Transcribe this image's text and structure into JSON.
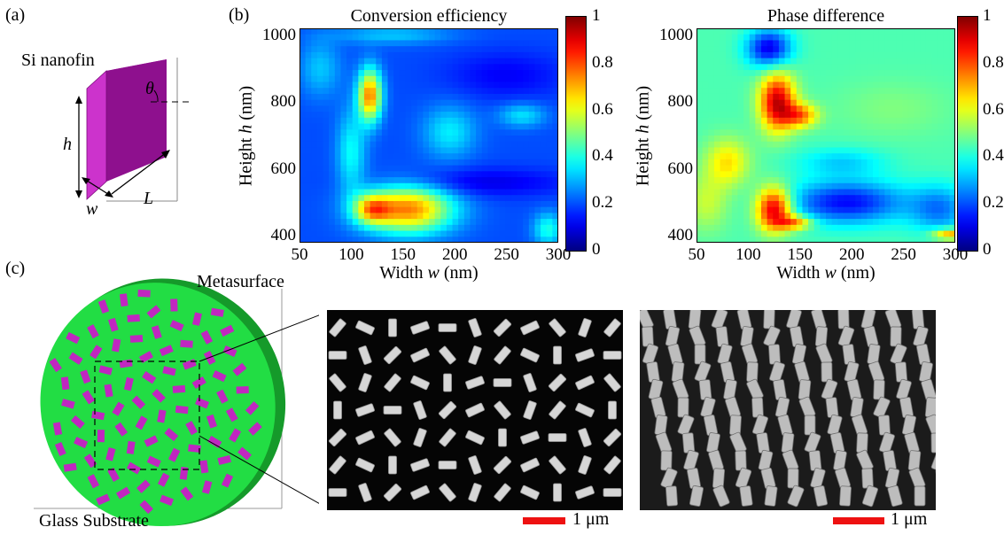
{
  "panels": {
    "a": {
      "label": "(a)",
      "title": "Si nanofin",
      "symbols": {
        "theta": "θ",
        "h": "h",
        "w": "w",
        "L": "L"
      },
      "colors": {
        "fin_front": "#cc33cc",
        "fin_side": "#8e108e",
        "fin_top": "#b425b4"
      }
    },
    "b": {
      "label": "(b)"
    },
    "c": {
      "label": "(c)",
      "metasurface_label": "Metasurface",
      "substrate_label": "Glass Substrate",
      "scale_bar_left": "1 μm",
      "scale_bar_right": "1 μm",
      "colors": {
        "substrate": "#22dd44",
        "substrate_edge": "#159a2a",
        "fins": "#c027c0",
        "scale_bar": "#ee1111",
        "sem_bg": "#050505"
      }
    }
  },
  "chart_data": [
    {
      "type": "heatmap",
      "title": "Conversion efficiency",
      "xlabel_prefix": "Width ",
      "xlabel_var": "w",
      "xlabel_unit": " (nm)",
      "ylabel_prefix": "Height ",
      "ylabel_var": "h",
      "ylabel_unit": " (nm)",
      "xlim": [
        50,
        300
      ],
      "ylim": [
        380,
        1020
      ],
      "xticks": [
        "50",
        "100",
        "150",
        "200",
        "250",
        "300"
      ],
      "yticks": [
        "400",
        "600",
        "800",
        "1000"
      ],
      "colorbar_ticks": [
        "0",
        "0.2",
        "0.4",
        "0.6",
        "0.8",
        "1"
      ],
      "colormap": "jet",
      "background": 0.2,
      "hotspots": [
        {
          "x": 155,
          "y": 480,
          "sx": 30,
          "sy": 50,
          "v": 0.55
        },
        {
          "x": 120,
          "y": 480,
          "sx": 12,
          "sy": 30,
          "v": 0.35
        },
        {
          "x": 118,
          "y": 820,
          "sx": 8,
          "sy": 55,
          "v": 0.55
        },
        {
          "x": 100,
          "y": 650,
          "sx": 10,
          "sy": 90,
          "v": 0.18
        },
        {
          "x": 70,
          "y": 900,
          "sx": 14,
          "sy": 60,
          "v": 0.12
        },
        {
          "x": 140,
          "y": 1000,
          "sx": 40,
          "sy": 20,
          "v": 0.12
        },
        {
          "x": 195,
          "y": 710,
          "sx": 18,
          "sy": 55,
          "v": 0.16
        },
        {
          "x": 265,
          "y": 760,
          "sx": 16,
          "sy": 25,
          "v": 0.15
        },
        {
          "x": 290,
          "y": 420,
          "sx": 10,
          "sy": 35,
          "v": 0.2
        },
        {
          "x": 225,
          "y": 560,
          "sx": 60,
          "sy": 30,
          "v": -0.1
        },
        {
          "x": 250,
          "y": 880,
          "sx": 40,
          "sy": 50,
          "v": -0.08
        }
      ]
    },
    {
      "type": "heatmap",
      "title": "Phase difference",
      "xlabel_prefix": "Width ",
      "xlabel_var": "w",
      "xlabel_unit": " (nm)",
      "ylabel_prefix": "Height ",
      "ylabel_var": "h",
      "ylabel_unit": " (nm)",
      "xlim": [
        50,
        300
      ],
      "ylim": [
        380,
        1020
      ],
      "xticks": [
        "50",
        "100",
        "150",
        "200",
        "250",
        "300"
      ],
      "yticks": [
        "400",
        "600",
        "800",
        "1000"
      ],
      "colorbar_ticks": [
        "0",
        "0.2",
        "0.4",
        "0.6",
        "0.8",
        "1"
      ],
      "colormap": "jet",
      "background": 0.45,
      "hotspots": [
        {
          "x": 128,
          "y": 800,
          "sx": 12,
          "sy": 60,
          "v": 0.48
        },
        {
          "x": 150,
          "y": 760,
          "sx": 12,
          "sy": 25,
          "v": 0.3
        },
        {
          "x": 125,
          "y": 480,
          "sx": 12,
          "sy": 45,
          "v": 0.5
        },
        {
          "x": 145,
          "y": 440,
          "sx": 12,
          "sy": 15,
          "v": 0.3
        },
        {
          "x": 80,
          "y": 620,
          "sx": 15,
          "sy": 50,
          "v": 0.2
        },
        {
          "x": 60,
          "y": 500,
          "sx": 15,
          "sy": 60,
          "v": 0.12
        },
        {
          "x": 120,
          "y": 960,
          "sx": 15,
          "sy": 40,
          "v": -0.35
        },
        {
          "x": 195,
          "y": 500,
          "sx": 40,
          "sy": 45,
          "v": -0.32
        },
        {
          "x": 190,
          "y": 620,
          "sx": 30,
          "sy": 30,
          "v": -0.12
        },
        {
          "x": 285,
          "y": 480,
          "sx": 20,
          "sy": 50,
          "v": -0.2
        },
        {
          "x": 295,
          "y": 405,
          "sx": 12,
          "sy": 12,
          "v": 0.3
        },
        {
          "x": 240,
          "y": 780,
          "sx": 40,
          "sy": 60,
          "v": 0.05
        }
      ]
    }
  ]
}
